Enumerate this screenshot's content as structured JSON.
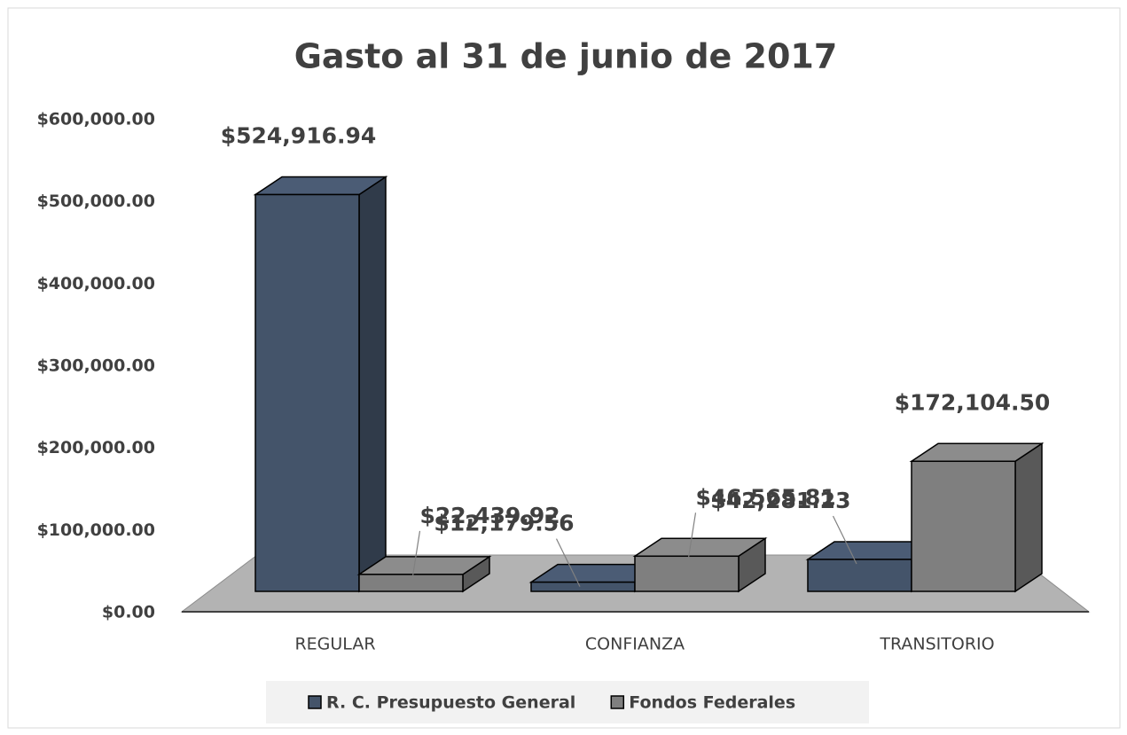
{
  "chart_data": {
    "type": "bar3d",
    "title": "Gasto al 31 de junio de 2017",
    "categories": [
      "REGULAR",
      "CONFIANZA",
      "TRANSITORIO"
    ],
    "series": [
      {
        "name": "R. C. Presupuesto General",
        "color": "#44546a",
        "values": [
          524916.94,
          12179.56,
          42281.23
        ],
        "value_labels": [
          "$524,916.94",
          "$12,179.56",
          "$42,281.23"
        ]
      },
      {
        "name": "Fondos Federales",
        "color": "#7f7f7f",
        "values": [
          22439.92,
          46565.81,
          172104.5
        ],
        "value_labels": [
          "$22,439.92",
          "$46,565.81",
          "$172,104.50"
        ]
      }
    ],
    "ylim": [
      0,
      600000
    ],
    "yticks": [
      {
        "value": 0,
        "label": "$0.00"
      },
      {
        "value": 100000,
        "label": "$100,000.00"
      },
      {
        "value": 200000,
        "label": "$200,000.00"
      },
      {
        "value": 300000,
        "label": "$300,000.00"
      },
      {
        "value": 400000,
        "label": "$400,000.00"
      },
      {
        "value": 500000,
        "label": "$500,000.00"
      },
      {
        "value": 600000,
        "label": "$600,000.00"
      }
    ],
    "legend": "bottom"
  }
}
